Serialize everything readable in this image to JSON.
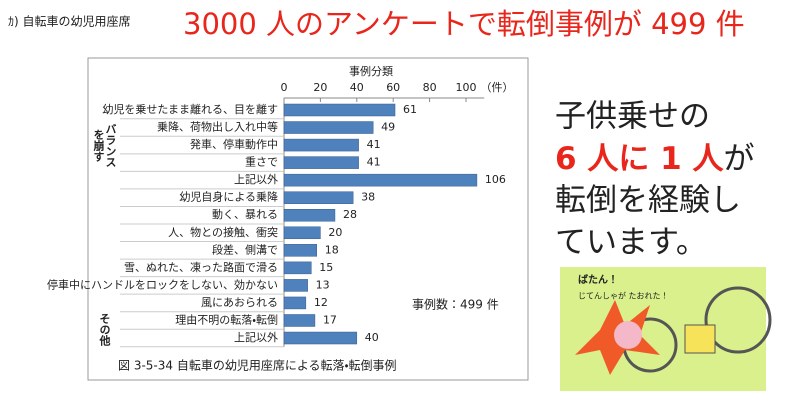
{
  "header": {
    "section": "ｶ) 自転車の幼児用座席",
    "headline": "3000 人のアンケートで転倒事例が 499 件"
  },
  "chart_data": {
    "type": "bar",
    "orientation": "horizontal",
    "axis_title": "事例分類",
    "unit": "（件）",
    "caption": "図 3-5-34  自転車の幼児用座席による転落・転倒事例",
    "annotation": "事例数：499 件",
    "groups": [
      [
        "バランス",
        "を崩す"
      ],
      [
        "その他"
      ]
    ],
    "categories": [
      "幼児を乗せたまま離れる、目を離す",
      "乗降、荷物出し入れ中等",
      "発車、停車動作中",
      "重さで",
      "上記以外",
      "幼児自身による乗降",
      "動く、暴れる",
      "人、物との接触、衝突",
      "段差、側溝で",
      "雪、ぬれた、凍った路面で滑る",
      "停車中にハンドルをロックをしない、効かない",
      "風にあおられる",
      "理由不明の転落・転倒",
      "上記以外"
    ],
    "values": [
      61,
      49,
      41,
      41,
      106,
      38,
      28,
      20,
      18,
      15,
      13,
      12,
      17,
      40
    ],
    "color": "#4f81bd",
    "xlim": [
      0,
      110
    ],
    "xticks": [
      0,
      20,
      40,
      60,
      80,
      100
    ]
  },
  "message": {
    "line1": "子供乗せの",
    "highlight": "6 人に 1 人",
    "line2_rest": "が",
    "line3": "転倒を経験し",
    "line4": "ています。"
  },
  "illustration": {
    "sound": "ばたん！",
    "caption": "じてんしゃが たおれた！"
  }
}
